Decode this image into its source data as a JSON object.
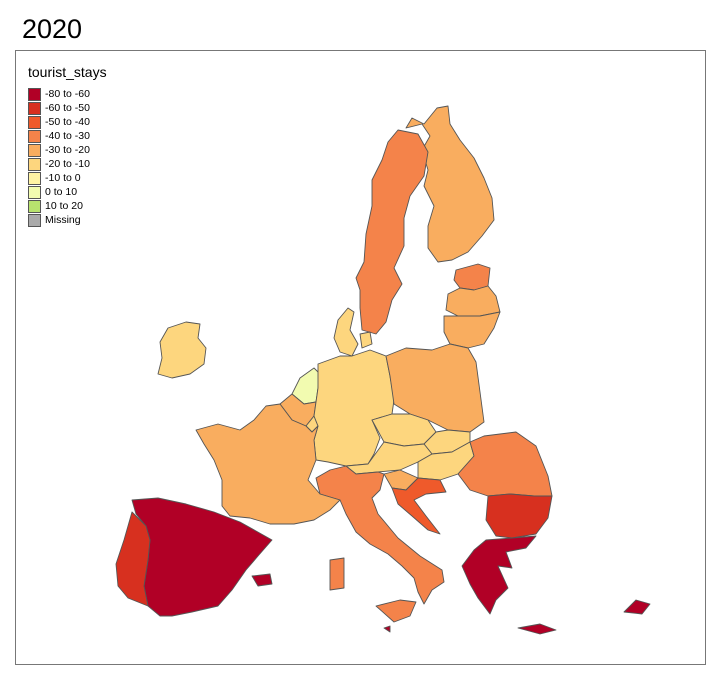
{
  "map": {
    "title": "2020",
    "legend": {
      "title": "tourist_stays",
      "items": [
        {
          "label": "-80 to -60",
          "color": "#b10026"
        },
        {
          "label": "-60 to -50",
          "color": "#d7301f"
        },
        {
          "label": "-50 to -40",
          "color": "#ef5a2b"
        },
        {
          "label": "-40 to -30",
          "color": "#f4834a"
        },
        {
          "label": "-30 to -20",
          "color": "#f9ad5f"
        },
        {
          "label": "-20 to -10",
          "color": "#fdd67e"
        },
        {
          "label": "-10 to 0",
          "color": "#fff3a4"
        },
        {
          "label": "0 to 10",
          "color": "#f2fbb0"
        },
        {
          "label": "10 to 20",
          "color": "#b8e26e"
        },
        {
          "label": "Missing",
          "color": "#aaaaaa"
        }
      ]
    },
    "regions": [
      {
        "id": "finland",
        "class": "-30 to -20"
      },
      {
        "id": "sweden",
        "class": "-40 to -30"
      },
      {
        "id": "estonia",
        "class": "-40 to -30"
      },
      {
        "id": "latvia",
        "class": "-30 to -20"
      },
      {
        "id": "lithuania",
        "class": "-30 to -20"
      },
      {
        "id": "denmark",
        "class": "-20 to -10"
      },
      {
        "id": "ireland",
        "class": "-20 to -10"
      },
      {
        "id": "netherlands",
        "class": "0 to 10"
      },
      {
        "id": "belgium",
        "class": "-30 to -20"
      },
      {
        "id": "luxembourg",
        "class": "-20 to -10"
      },
      {
        "id": "germany",
        "class": "-20 to -10"
      },
      {
        "id": "poland",
        "class": "-30 to -20"
      },
      {
        "id": "czechia",
        "class": "-20 to -10"
      },
      {
        "id": "slovakia",
        "class": "-20 to -10"
      },
      {
        "id": "austria",
        "class": "-20 to -10"
      },
      {
        "id": "hungary",
        "class": "-20 to -10"
      },
      {
        "id": "slovenia",
        "class": "-30 to -20"
      },
      {
        "id": "croatia",
        "class": "-50 to -40"
      },
      {
        "id": "romania",
        "class": "-40 to -30"
      },
      {
        "id": "bulgaria",
        "class": "-60 to -50"
      },
      {
        "id": "greece",
        "class": "-80 to -60"
      },
      {
        "id": "cyprus",
        "class": "-80 to -60"
      },
      {
        "id": "malta",
        "class": "-80 to -60"
      },
      {
        "id": "italy",
        "class": "-40 to -30"
      },
      {
        "id": "france",
        "class": "-30 to -20"
      },
      {
        "id": "spain",
        "class": "-80 to -60"
      },
      {
        "id": "portugal",
        "class": "-60 to -50"
      }
    ]
  }
}
